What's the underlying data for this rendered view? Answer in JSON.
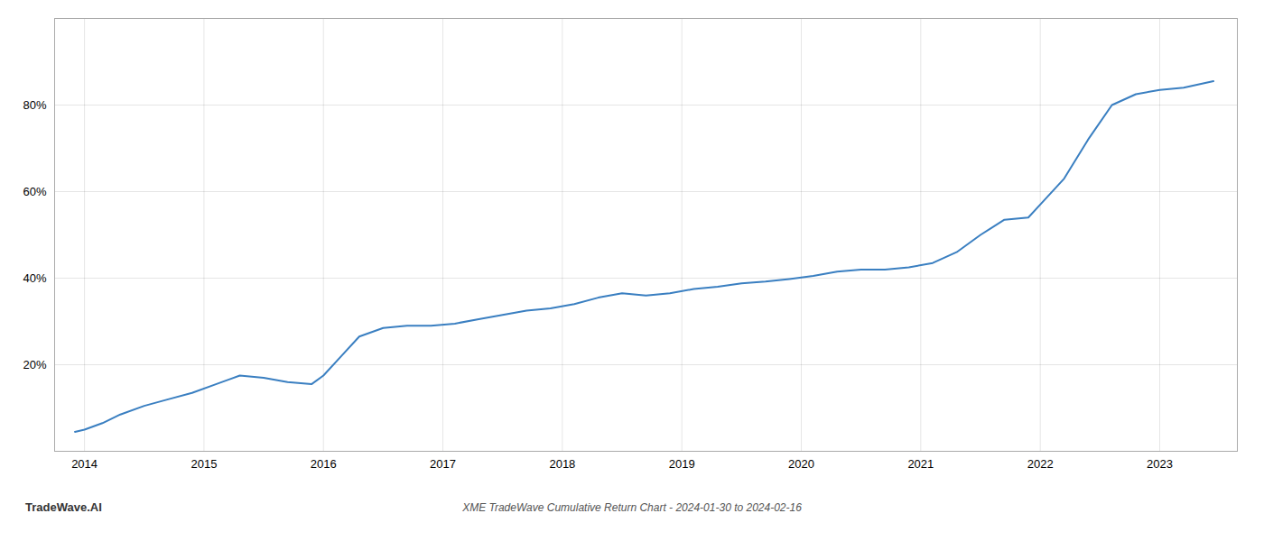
{
  "chart_data": {
    "type": "line",
    "title": "XME TradeWave Cumulative Return Chart - 2024-01-30 to 2024-02-16",
    "annotations": [
      "TradeWave.AI"
    ],
    "color": "#3a7fc1",
    "x": [
      2013.92,
      2014.0,
      2014.15,
      2014.3,
      2014.5,
      2014.7,
      2014.9,
      2015.1,
      2015.3,
      2015.5,
      2015.7,
      2015.9,
      2016.0,
      2016.15,
      2016.3,
      2016.5,
      2016.7,
      2016.9,
      2017.1,
      2017.3,
      2017.5,
      2017.7,
      2017.9,
      2018.1,
      2018.3,
      2018.5,
      2018.7,
      2018.9,
      2019.1,
      2019.3,
      2019.5,
      2019.7,
      2019.9,
      2020.1,
      2020.3,
      2020.5,
      2020.7,
      2020.9,
      2021.1,
      2021.3,
      2021.5,
      2021.7,
      2021.9,
      2022.0,
      2022.2,
      2022.4,
      2022.6,
      2022.8,
      2023.0,
      2023.2,
      2023.45
    ],
    "values": [
      4.5,
      5.0,
      6.5,
      8.5,
      10.5,
      12.0,
      13.5,
      15.5,
      17.5,
      17.0,
      16.0,
      15.5,
      17.5,
      22.0,
      26.5,
      28.5,
      29.0,
      29.0,
      29.5,
      30.5,
      31.5,
      32.5,
      33.0,
      34.0,
      35.5,
      36.5,
      36.0,
      36.5,
      37.5,
      38.0,
      38.8,
      39.2,
      39.8,
      40.5,
      41.5,
      42.0,
      42.0,
      42.5,
      43.5,
      46.0,
      50.0,
      53.5,
      54.0,
      57.0,
      63.0,
      72.0,
      80.0,
      82.5,
      83.5,
      84.0,
      85.5
    ],
    "xlim": [
      2013.75,
      2023.65
    ],
    "ylim": [
      0,
      100
    ],
    "xticks": [
      2014,
      2015,
      2016,
      2017,
      2018,
      2019,
      2020,
      2021,
      2022,
      2023
    ],
    "yticks": [
      {
        "value": 20,
        "label": "20%"
      },
      {
        "value": 40,
        "label": "40%"
      },
      {
        "value": 60,
        "label": "60%"
      },
      {
        "value": 80,
        "label": "80%"
      }
    ],
    "grid": true
  }
}
